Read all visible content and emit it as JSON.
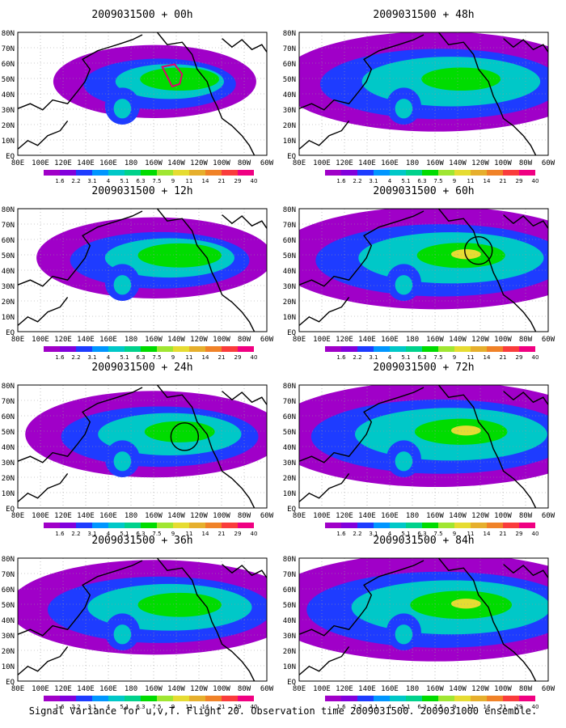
{
  "panels": [
    {
      "title": "2009031500 + 00h",
      "marker": "polygon",
      "intensity": 0.55,
      "spread": 0.35
    },
    {
      "title": "2009031500 + 48h",
      "marker": "none",
      "intensity": 0.55,
      "spread": 0.85
    },
    {
      "title": "2009031500 + 12h",
      "marker": "none",
      "intensity": 0.6,
      "spread": 0.5
    },
    {
      "title": "2009031500 + 60h",
      "marker": "circle",
      "intensity": 0.65,
      "spread": 0.9
    },
    {
      "title": "2009031500 + 24h",
      "marker": "circle",
      "intensity": 0.45,
      "spread": 0.6
    },
    {
      "title": "2009031500 + 72h",
      "marker": "none",
      "intensity": 0.7,
      "spread": 0.95
    },
    {
      "title": "2009031500 + 36h",
      "marker": "none",
      "intensity": 0.6,
      "spread": 0.75
    },
    {
      "title": "2009031500 + 84h",
      "marker": "none",
      "intensity": 0.8,
      "spread": 1.0
    }
  ],
  "lat_labels": [
    "80N",
    "70N",
    "60N",
    "50N",
    "40N",
    "30N",
    "20N",
    "10N",
    "EQ"
  ],
  "lon_labels": [
    "80E",
    "100E",
    "120E",
    "140E",
    "160E",
    "180",
    "160W",
    "140W",
    "120W",
    "100W",
    "80W",
    "60W"
  ],
  "colorbar": {
    "labels": [
      "1.6",
      "2.2",
      "3.1",
      "4",
      "5.1",
      "6.3",
      "7.5",
      "9",
      "11",
      "14",
      "21",
      "29",
      "40"
    ],
    "colors": [
      "#a000c8",
      "#8200dc",
      "#1e3cff",
      "#0096ff",
      "#00c8c8",
      "#00d28c",
      "#00dc00",
      "#a0e632",
      "#e6dc32",
      "#e6af2d",
      "#f08228",
      "#fa3c3c",
      "#f00082"
    ]
  },
  "caption": "Signal Variance for u,v,T. Flight 20. Observation time 2009031500. 2009031000 ensemble."
}
